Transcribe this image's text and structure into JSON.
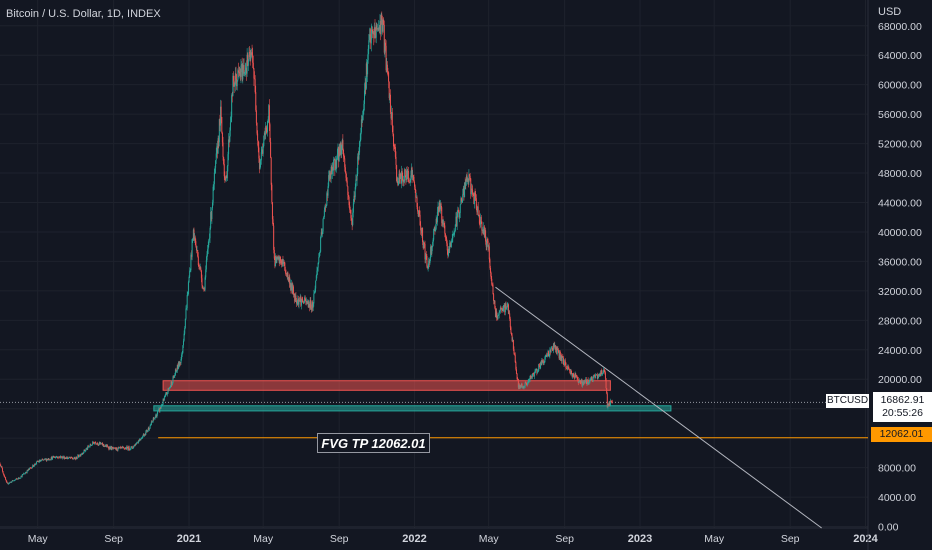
{
  "header": {
    "title": "Bitcoin / U.S. Dollar, 1D, INDEX",
    "currency": "USD"
  },
  "colors": {
    "background": "#131722",
    "up": "#26a69a",
    "down": "#ef5350",
    "grid": "#1e222d",
    "axis_text": "#d1d4dc",
    "fvg_line": "#ff9800"
  },
  "chart_data": {
    "type": "candlestick",
    "symbol": "BTCUSD",
    "interval": "1D",
    "x_axis": {
      "labels": [
        "May",
        "Sep",
        "2021",
        "May",
        "Sep",
        "2022",
        "May",
        "Sep",
        "2023",
        "May",
        "Sep",
        "2024"
      ],
      "start": "2020-03-01",
      "end": "2024-01-05"
    },
    "y_axis": {
      "ticks": [
        0,
        4000,
        8000,
        12000,
        16000,
        20000,
        24000,
        28000,
        32000,
        36000,
        40000,
        44000,
        48000,
        52000,
        56000,
        60000,
        64000,
        68000
      ],
      "tick_labels": [
        "0.00",
        "4000.00",
        "8000.00",
        "12000.00",
        "16000.00",
        "20000.00",
        "24000.00",
        "28000.00",
        "32000.00",
        "36000.00",
        "40000.00",
        "44000.00",
        "48000.00",
        "52000.00",
        "56000.00",
        "60000.00",
        "64000.00",
        "68000.00"
      ],
      "range": [
        -200,
        71500
      ]
    },
    "price_path": [
      [
        "2020-03-01",
        8600
      ],
      [
        "2020-03-12",
        5800
      ],
      [
        "2020-04-01",
        6600
      ],
      [
        "2020-05-01",
        8800
      ],
      [
        "2020-06-01",
        9500
      ],
      [
        "2020-07-01",
        9200
      ],
      [
        "2020-08-01",
        11500
      ],
      [
        "2020-09-01",
        10500
      ],
      [
        "2020-10-01",
        10700
      ],
      [
        "2020-10-25",
        13000
      ],
      [
        "2020-11-15",
        16000
      ],
      [
        "2020-12-01",
        19000
      ],
      [
        "2020-12-20",
        23000
      ],
      [
        "2021-01-08",
        40000
      ],
      [
        "2021-01-25",
        32000
      ],
      [
        "2021-02-21",
        56000
      ],
      [
        "2021-03-01",
        46000
      ],
      [
        "2021-03-13",
        60000
      ],
      [
        "2021-04-14",
        64000
      ],
      [
        "2021-04-25",
        49000
      ],
      [
        "2021-05-10",
        56000
      ],
      [
        "2021-05-19",
        36000
      ],
      [
        "2021-06-01",
        36000
      ],
      [
        "2021-06-22",
        31000
      ],
      [
        "2021-07-20",
        30000
      ],
      [
        "2021-08-15",
        47000
      ],
      [
        "2021-09-06",
        52000
      ],
      [
        "2021-09-21",
        41000
      ],
      [
        "2021-10-20",
        66000
      ],
      [
        "2021-11-10",
        68500
      ],
      [
        "2021-12-04",
        47000
      ],
      [
        "2021-12-28",
        48000
      ],
      [
        "2022-01-22",
        35000
      ],
      [
        "2022-02-10",
        44000
      ],
      [
        "2022-02-24",
        37000
      ],
      [
        "2022-03-28",
        47500
      ],
      [
        "2022-04-30",
        38000
      ],
      [
        "2022-05-12",
        28500
      ],
      [
        "2022-06-01",
        30000
      ],
      [
        "2022-06-18",
        19000
      ],
      [
        "2022-07-01",
        19300
      ],
      [
        "2022-08-14",
        24500
      ],
      [
        "2022-09-10",
        21000
      ],
      [
        "2022-09-30",
        19400
      ],
      [
        "2022-10-25",
        20500
      ],
      [
        "2022-11-05",
        21300
      ],
      [
        "2022-11-09",
        16500
      ],
      [
        "2022-11-17",
        16862.91
      ]
    ],
    "zones": [
      {
        "type": "rectangle",
        "color": "#ef5350",
        "x0": "2020-11-20",
        "x1": "2022-11-14",
        "y0": 18500,
        "y1": 19800
      },
      {
        "type": "rectangle",
        "color": "#26a69a",
        "x0": "2020-11-05",
        "x1": "2023-02-20",
        "y0": 15700,
        "y1": 16400
      }
    ],
    "trendline": {
      "from": [
        "2022-05-12",
        32500
      ],
      "to": [
        "2023-10-22",
        -200
      ]
    },
    "fvg_line": {
      "price": 12062.01,
      "label": "FVG TP 12062.01"
    },
    "last_price": {
      "symbol": "BTCUSD",
      "price": "16862.91",
      "countdown": "20:55:26",
      "value": 16862.91
    },
    "fvg_price_label": "12062.01"
  }
}
